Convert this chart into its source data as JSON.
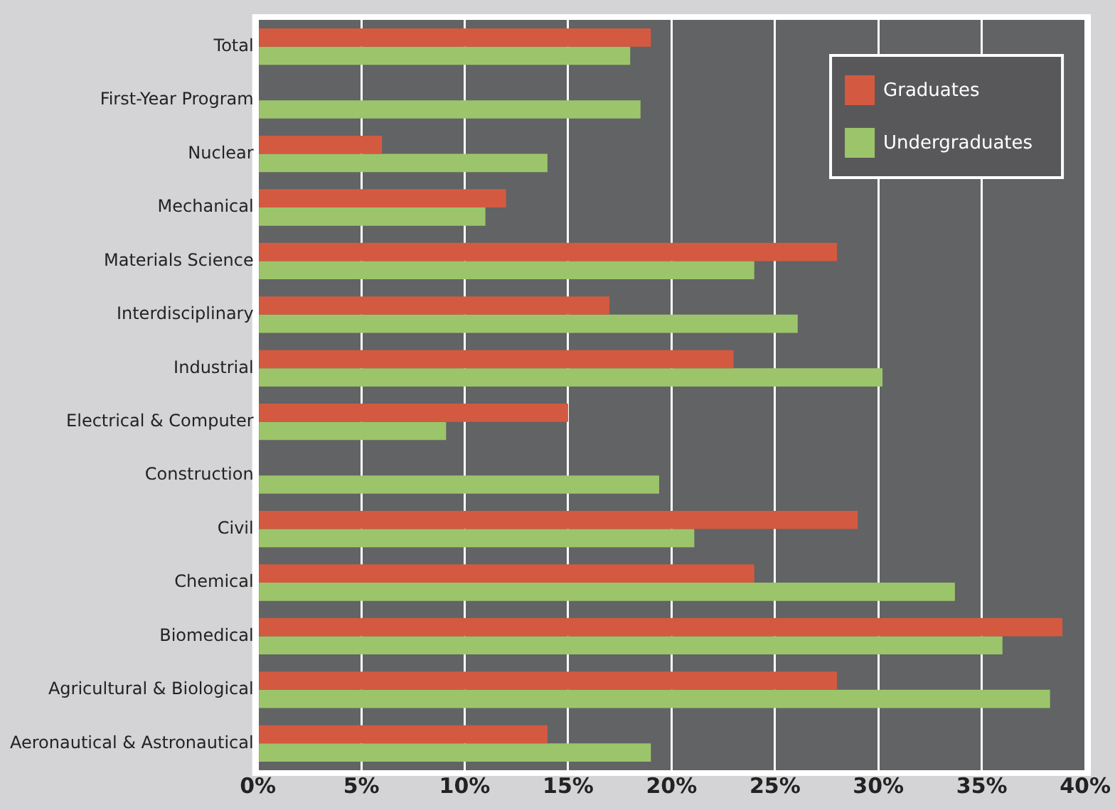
{
  "chart_data": {
    "type": "bar",
    "orientation": "horizontal",
    "categories": [
      "Total",
      "First-Year Program",
      "Nuclear",
      "Mechanical",
      "Materials Science",
      "Interdisciplinary",
      "Industrial",
      "Electrical & Computer",
      "Construction",
      "Civil",
      "Chemical",
      "Biomedical",
      "Agricultural & Biological",
      "Aeronautical & Astronautical"
    ],
    "series": [
      {
        "name": "Graduates",
        "color": "#d35a40",
        "values": [
          19,
          null,
          6,
          12,
          28,
          17,
          23,
          15,
          null,
          29,
          24,
          38.9,
          28,
          14
        ]
      },
      {
        "name": "Undergraduates",
        "color": "#9cc56b",
        "values": [
          18,
          18.5,
          14,
          11,
          24,
          26.1,
          30.2,
          9.1,
          19.4,
          21.1,
          33.7,
          36,
          38.3,
          19
        ]
      }
    ],
    "xlim": [
      0,
      40
    ],
    "xticks": [
      {
        "value": 0,
        "label": "0%"
      },
      {
        "value": 5,
        "label": "5%"
      },
      {
        "value": 10,
        "label": "10%"
      },
      {
        "value": 15,
        "label": "15%"
      },
      {
        "value": 20,
        "label": "20%"
      },
      {
        "value": 25,
        "label": "25%"
      },
      {
        "value": 30,
        "label": "30%"
      },
      {
        "value": 35,
        "label": "35%"
      },
      {
        "value": 40,
        "label": "40%"
      }
    ],
    "grid": "x",
    "legend": "top right"
  }
}
